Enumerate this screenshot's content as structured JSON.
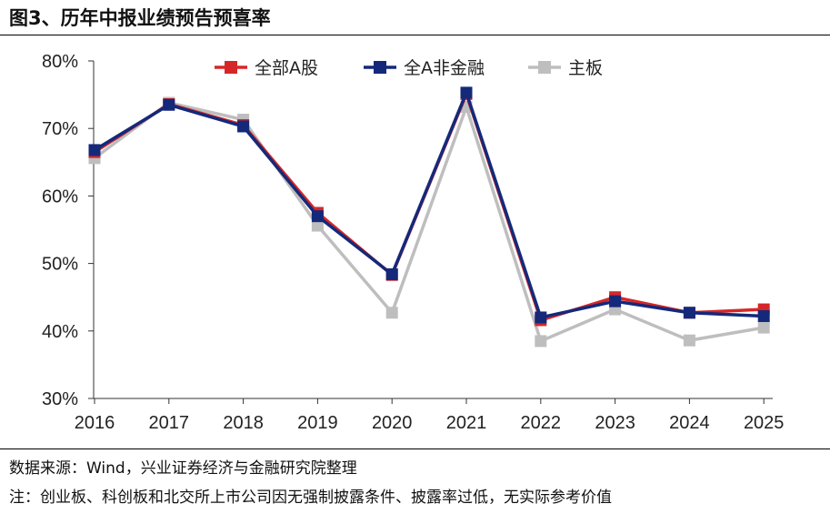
{
  "figure": {
    "title": "图3、历年中报业绩预告预喜率",
    "source": "数据来源：Wind，兴业证券经济与金融研究院整理",
    "note": "注：创业板、科创板和北交所上市公司因无强制披露条件、披露率过低，无实际参考价值"
  },
  "chart_data": {
    "type": "line",
    "title": "",
    "xlabel": "",
    "ylabel": "",
    "x": [
      "2016",
      "2017",
      "2018",
      "2019",
      "2020",
      "2021",
      "2022",
      "2023",
      "2024",
      "2025"
    ],
    "ylim": [
      30,
      80
    ],
    "yticks": [
      30,
      40,
      50,
      60,
      70,
      80
    ],
    "ytick_labels": [
      "30%",
      "40%",
      "50%",
      "60%",
      "70%",
      "80%"
    ],
    "grid": false,
    "legend_position": "top",
    "series": [
      {
        "name": "全部A股",
        "color": "#D62728",
        "marker": "square",
        "values": [
          66.5,
          73.6,
          70.5,
          57.5,
          48.3,
          75.1,
          41.6,
          45.0,
          42.7,
          43.2
        ]
      },
      {
        "name": "全A非金融",
        "color": "#14297A",
        "marker": "square",
        "values": [
          66.8,
          73.5,
          70.3,
          57.0,
          48.4,
          75.3,
          42.0,
          44.4,
          42.7,
          42.2
        ]
      },
      {
        "name": "主板",
        "color": "#BEBEBE",
        "marker": "square",
        "values": [
          65.6,
          73.8,
          71.3,
          55.6,
          42.7,
          73.2,
          38.5,
          43.2,
          38.6,
          40.5
        ]
      }
    ]
  }
}
